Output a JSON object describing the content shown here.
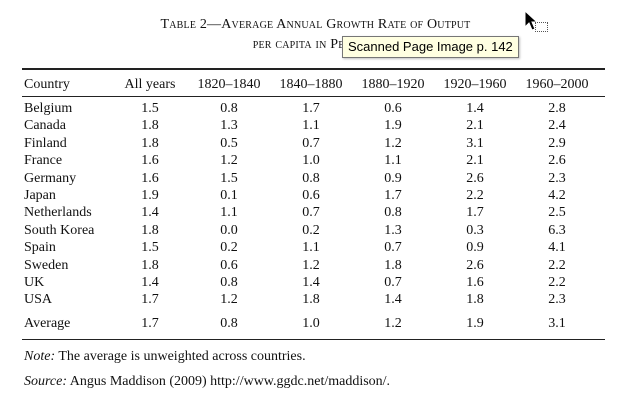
{
  "table": {
    "title_line1": "Table 2—Average Annual Growth Rate of Output",
    "title_line2": "per capita in Percent",
    "headers": [
      "Country",
      "All years",
      "1820–1840",
      "1840–1880",
      "1880–1920",
      "1920–1960",
      "1960–2000"
    ],
    "rows": [
      {
        "country": "Belgium",
        "values": [
          "1.5",
          "0.8",
          "1.7",
          "0.6",
          "1.4",
          "2.8"
        ]
      },
      {
        "country": "Canada",
        "values": [
          "1.8",
          "1.3",
          "1.1",
          "1.9",
          "2.1",
          "2.4"
        ]
      },
      {
        "country": "Finland",
        "values": [
          "1.8",
          "0.5",
          "0.7",
          "1.2",
          "3.1",
          "2.9"
        ]
      },
      {
        "country": "France",
        "values": [
          "1.6",
          "1.2",
          "1.0",
          "1.1",
          "2.1",
          "2.6"
        ]
      },
      {
        "country": "Germany",
        "values": [
          "1.6",
          "1.5",
          "0.8",
          "0.9",
          "2.6",
          "2.3"
        ]
      },
      {
        "country": "Japan",
        "values": [
          "1.9",
          "0.1",
          "0.6",
          "1.7",
          "2.2",
          "4.2"
        ]
      },
      {
        "country": "Netherlands",
        "values": [
          "1.4",
          "1.1",
          "0.7",
          "0.8",
          "1.7",
          "2.5"
        ]
      },
      {
        "country": "South Korea",
        "values": [
          "1.8",
          "0.0",
          "0.2",
          "1.3",
          "0.3",
          "6.3"
        ]
      },
      {
        "country": "Spain",
        "values": [
          "1.5",
          "0.2",
          "1.1",
          "0.7",
          "0.9",
          "4.1"
        ]
      },
      {
        "country": "Sweden",
        "values": [
          "1.8",
          "0.6",
          "1.2",
          "1.8",
          "2.6",
          "2.2"
        ]
      },
      {
        "country": "UK",
        "values": [
          "1.4",
          "0.8",
          "1.4",
          "0.7",
          "1.6",
          "2.2"
        ]
      },
      {
        "country": "USA",
        "values": [
          "1.7",
          "1.2",
          "1.8",
          "1.4",
          "1.8",
          "2.3"
        ]
      }
    ],
    "average": {
      "country": "Average",
      "values": [
        "1.7",
        "0.8",
        "1.0",
        "1.2",
        "1.9",
        "3.1"
      ]
    }
  },
  "notes": {
    "note_label": "Note:",
    "note_text": " The average is unweighted across countries.",
    "source_label": "Source:",
    "source_text": " Angus Maddison (2009) http://www.ggdc.net/maddison/."
  },
  "tooltip": {
    "text": "Scanned Page Image p. 142"
  },
  "icons": {
    "cursor": "arrow-cursor-icon",
    "drag": "drag-selection-icon"
  }
}
